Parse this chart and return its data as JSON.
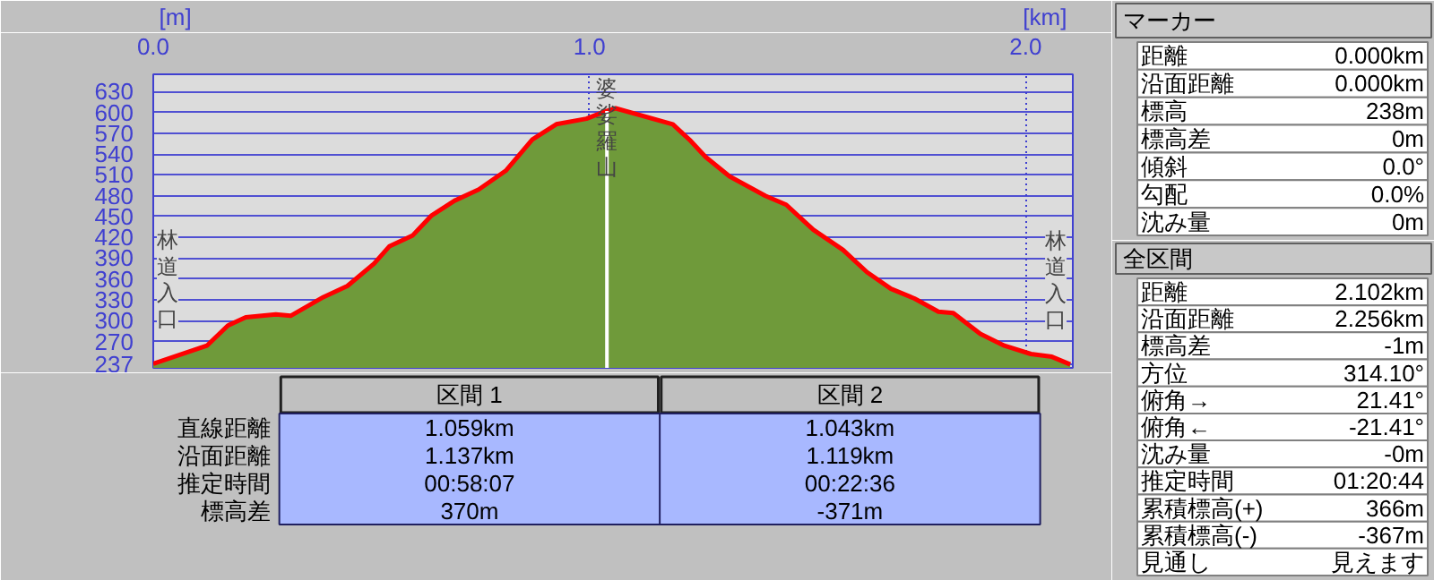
{
  "chart_data": [
    {
      "type": "area",
      "xlabel": "[km]",
      "ylabel": "[m]",
      "xlim": [
        0,
        2.108
      ],
      "ylim": [
        232,
        655
      ],
      "xticks": [
        {
          "value": 0,
          "label": "0.0"
        },
        {
          "value": 1,
          "label": "1.0"
        },
        {
          "value": 2,
          "label": "2.0"
        }
      ],
      "yticks": [
        237,
        270,
        300,
        330,
        360,
        390,
        420,
        450,
        480,
        510,
        540,
        570,
        600,
        630
      ],
      "grid": true,
      "x": [
        0,
        0.123,
        0.171,
        0.212,
        0.281,
        0.315,
        0.39,
        0.445,
        0.506,
        0.541,
        0.595,
        0.637,
        0.691,
        0.746,
        0.808,
        0.869,
        0.924,
        0.993,
        1.034,
        1.06,
        1.191,
        1.232,
        1.266,
        1.321,
        1.403,
        1.451,
        1.513,
        1.581,
        1.636,
        1.691,
        1.745,
        1.8,
        1.834,
        1.896,
        1.951,
        2.012,
        2.06,
        2.102
      ],
      "series": [
        {
          "type": "area",
          "color": "#6f9a3a",
          "values": [
            238,
            264,
            293,
            305,
            309,
            307,
            334,
            350,
            382,
            407,
            423,
            451,
            473,
            489,
            516,
            561,
            583,
            591,
            601,
            606,
            583,
            559,
            536,
            508,
            480,
            467,
            431,
            402,
            370,
            346,
            332,
            313,
            311,
            281,
            264,
            252,
            248,
            237
          ]
        },
        {
          "type": "line",
          "color": "#ff0000",
          "values": [
            238,
            264,
            293,
            305,
            309,
            307,
            334,
            350,
            382,
            407,
            423,
            451,
            473,
            489,
            516,
            561,
            583,
            591,
            601,
            606,
            583,
            559,
            536,
            508,
            480,
            467,
            431,
            402,
            370,
            346,
            332,
            313,
            311,
            281,
            264,
            252,
            248,
            237
          ]
        }
      ],
      "ref_lines": [
        {
          "axis": "x",
          "value": 1.04,
          "color": "#ffffff"
        }
      ],
      "annotations": [
        {
          "text": "林道入口",
          "x": 0,
          "y": 238
        },
        {
          "text": "婆娑羅山",
          "x": 1.04,
          "y": 603
        },
        {
          "text": "林道入口",
          "x": 2.102,
          "y": 237
        }
      ]
    },
    {
      "type": "other",
      "categories": [
        "区間 1",
        "区間 2"
      ],
      "y_categories": [
        "直線距離",
        "沿面距離",
        "推定時間",
        "標高差"
      ],
      "cell_labels": [
        [
          "1.059km",
          "1.043km"
        ],
        [
          "1.137km",
          "1.119km"
        ],
        [
          "00:58:07",
          "00:22:36"
        ],
        [
          "370m",
          "-371m"
        ]
      ]
    },
    {
      "type": "other",
      "title": "マーカー",
      "y_categories": [
        "距離",
        "沿面距離",
        "標高",
        "標高差",
        "傾斜",
        "勾配",
        "沈み量"
      ],
      "cell_labels": [
        [
          "0.000km"
        ],
        [
          "0.000km"
        ],
        [
          "238m"
        ],
        [
          "0m"
        ],
        [
          "0.0°"
        ],
        [
          "0.0%"
        ],
        [
          "0m"
        ]
      ]
    },
    {
      "type": "other",
      "title": "全区間",
      "y_categories": [
        "距離",
        "沿面距離",
        "標高差",
        "方位",
        "俯角→",
        "俯角←",
        "沈み量",
        "推定時間",
        "累積標高(+)",
        "累積標高(-)",
        "見通し"
      ],
      "cell_labels": [
        [
          "2.102km"
        ],
        [
          "2.256km"
        ],
        [
          "-1m"
        ],
        [
          "314.10°"
        ],
        [
          "21.41°"
        ],
        [
          "-21.41°"
        ],
        [
          "-0m"
        ],
        [
          "01:20:44"
        ],
        [
          "366m"
        ],
        [
          "-367m"
        ],
        [
          "見えます"
        ]
      ]
    }
  ]
}
